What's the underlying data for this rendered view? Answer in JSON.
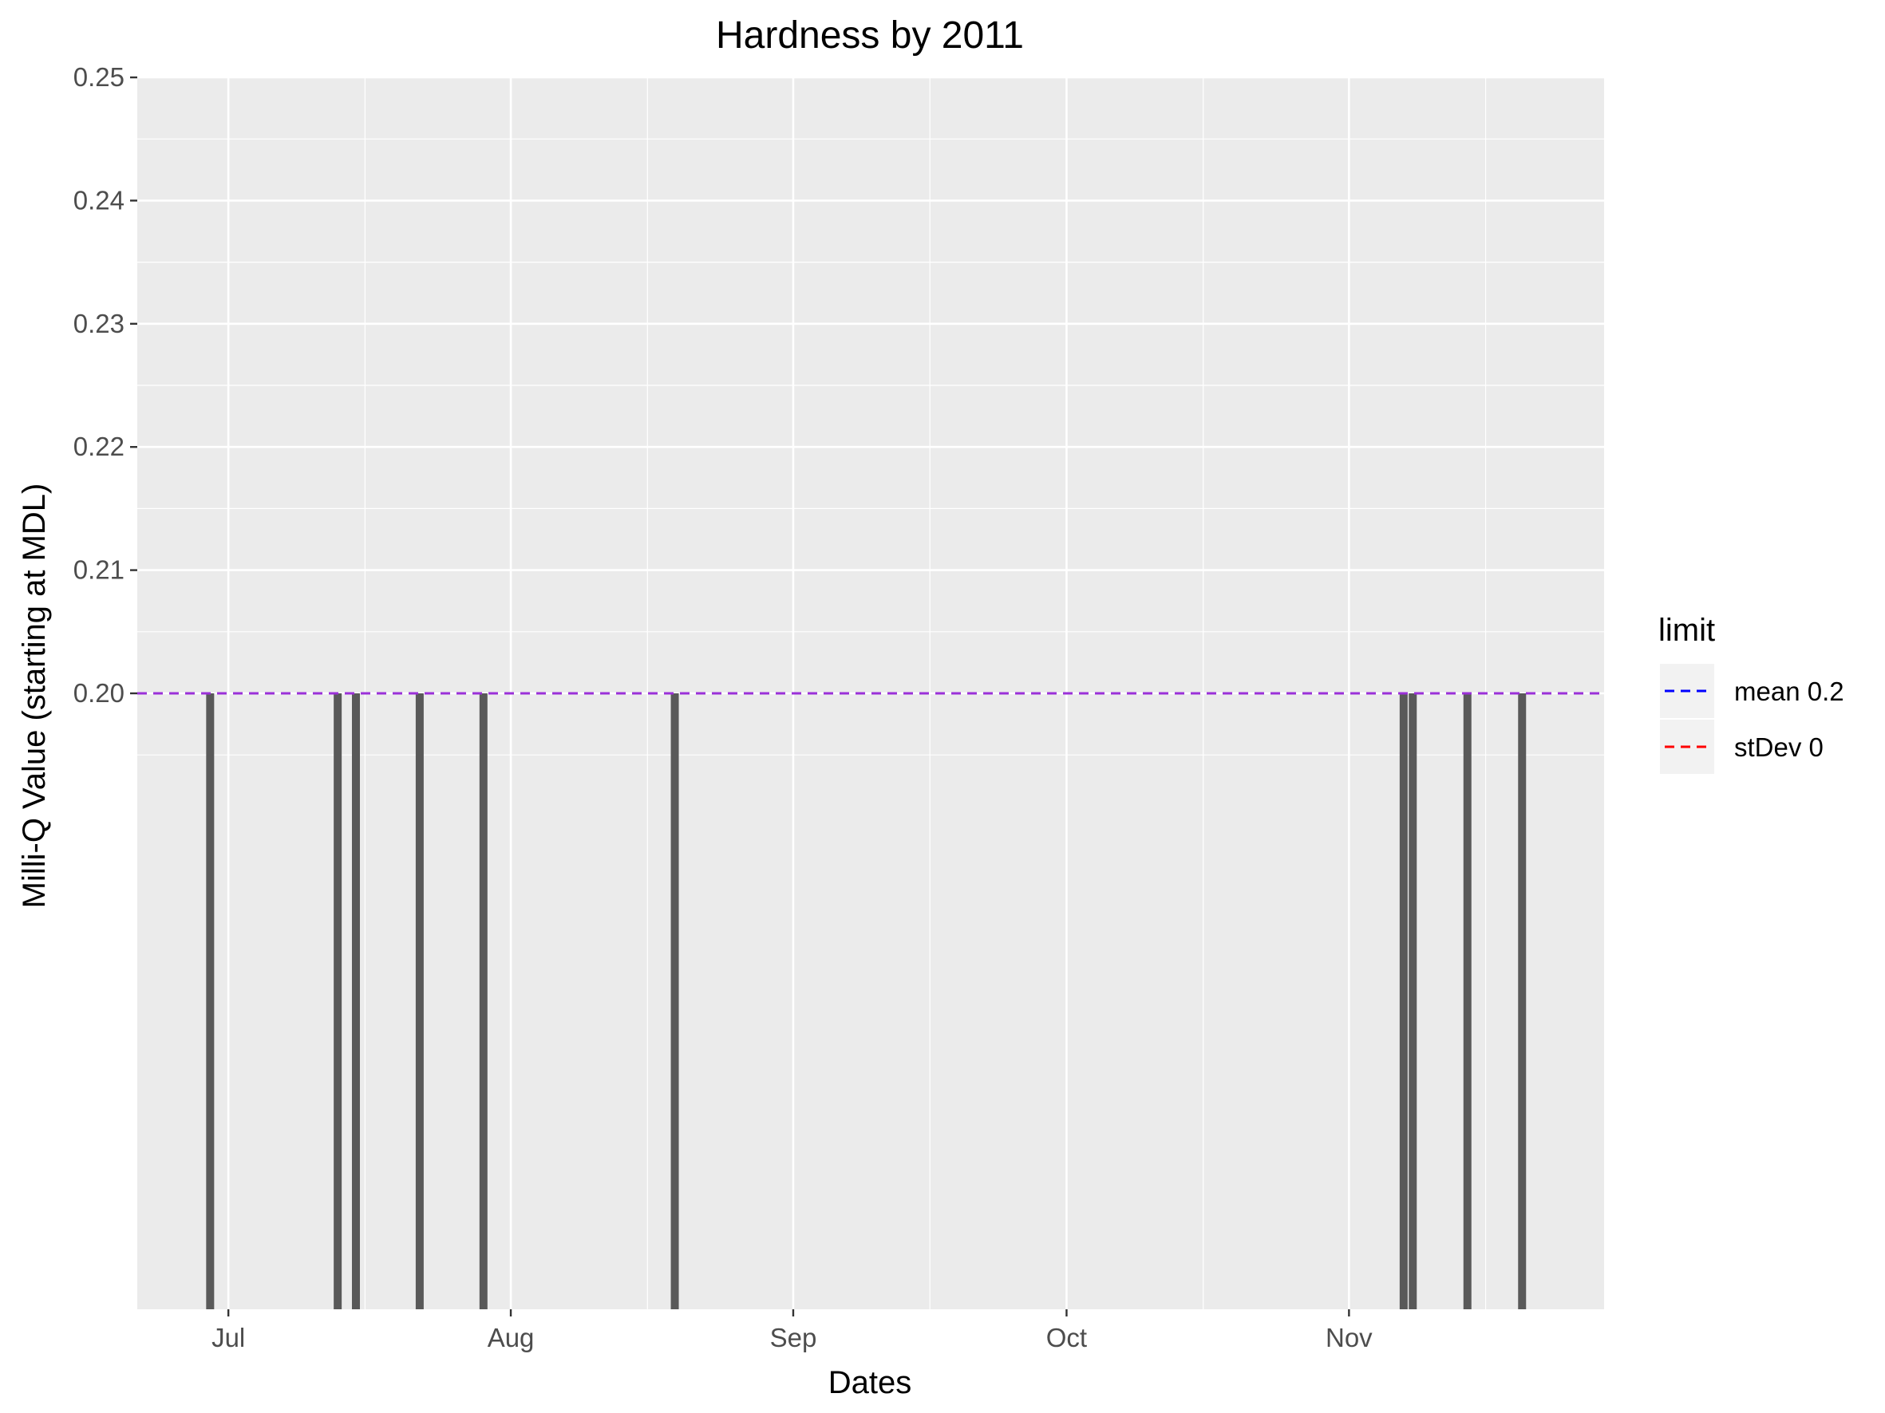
{
  "chart_data": {
    "type": "bar",
    "title": "Hardness by 2011",
    "xlabel": "Dates",
    "ylabel": "Milli-Q Value (starting at MDL)",
    "x_type": "date",
    "xlim": [
      "2011-06-21",
      "2011-11-29"
    ],
    "x_ticks": [
      {
        "label": "Jul",
        "date": "2011-07-01"
      },
      {
        "label": "Aug",
        "date": "2011-08-01"
      },
      {
        "label": "Sep",
        "date": "2011-09-01"
      },
      {
        "label": "Oct",
        "date": "2011-10-01"
      },
      {
        "label": "Nov",
        "date": "2011-11-01"
      }
    ],
    "x_minor_ticks": [
      "2011-07-16",
      "2011-08-16",
      "2011-09-16",
      "2011-10-16",
      "2011-11-16"
    ],
    "ylim": [
      0.15,
      0.25
    ],
    "y_ticks": [
      "0.20",
      "0.21",
      "0.22",
      "0.23",
      "0.24",
      "0.25"
    ],
    "y_minor_ticks": [
      0.195,
      0.205,
      0.215,
      0.225,
      0.235,
      0.245
    ],
    "grid": true,
    "bar_color": "#595959",
    "dates": [
      "2011-06-29",
      "2011-07-13",
      "2011-07-15",
      "2011-07-22",
      "2011-07-29",
      "2011-08-19",
      "2011-11-07",
      "2011-11-08",
      "2011-11-14",
      "2011-11-20"
    ],
    "values": [
      0.2,
      0.2,
      0.2,
      0.2,
      0.2,
      0.2,
      0.2,
      0.2,
      0.2,
      0.2
    ],
    "reference_lines": [
      {
        "label": "mean 0.2",
        "value": 0.2,
        "style": "dashed",
        "color": "#0000ff"
      },
      {
        "label": "stDev 0",
        "value": 0.2,
        "style": "dashed",
        "color": "#ff0000"
      }
    ],
    "overlap_color": "#9b30d9",
    "legend": {
      "title": "limit",
      "placement": "right"
    }
  }
}
